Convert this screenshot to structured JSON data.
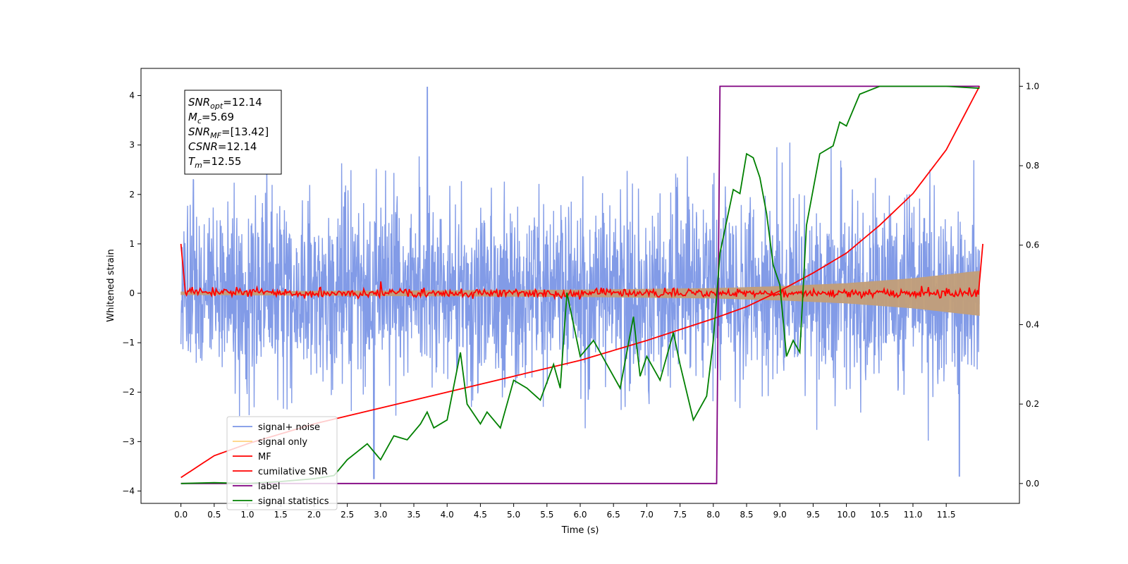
{
  "chart_data": {
    "type": "line",
    "xlabel": "Time (s)",
    "ylabel": "Whitened strain",
    "xlim": [
      -0.6,
      12.6
    ],
    "ylim_left": [
      -4.25,
      4.55
    ],
    "ylim_right": [
      -0.05,
      1.045
    ],
    "x_ticks": [
      "0.0",
      "0.5",
      "1.0",
      "1.5",
      "2.0",
      "2.5",
      "3.0",
      "3.5",
      "4.0",
      "4.5",
      "5.0",
      "5.5",
      "6.0",
      "6.5",
      "7.0",
      "7.5",
      "8.0",
      "8.5",
      "9.0",
      "9.5",
      "10.0",
      "10.5",
      "11.0",
      "11.5"
    ],
    "y_ticks_left": [
      4,
      3,
      2,
      1,
      0,
      -1,
      -2,
      -3,
      -4
    ],
    "y_ticks_right": [
      "1.0",
      "0.8",
      "0.6",
      "0.4",
      "0.2",
      "0.0"
    ],
    "annotation_lines": [
      {
        "sym": "SNR",
        "sub": "opt",
        "value": "=12.14"
      },
      {
        "sym": "M",
        "sub": "c",
        "value": "=5.69"
      },
      {
        "sym": "SNR",
        "sub": "MF",
        "value": "=[13.42]"
      },
      {
        "sym": "CSNR",
        "sub": "",
        "value": "=12.14"
      },
      {
        "sym": "T",
        "sub": "m",
        "value": "=12.55"
      }
    ],
    "legend_position": "lower-left",
    "legend": [
      {
        "label": "signal+ noise",
        "color": "#7b96e6"
      },
      {
        "label": "signal only",
        "color": "#ffd27f"
      },
      {
        "label": "MF",
        "color": "#ff0000"
      },
      {
        "label": "cumilative SNR",
        "color": "#ff0000"
      },
      {
        "label": "label",
        "color": "#800080"
      },
      {
        "label": "signal statistics",
        "color": "#008000"
      }
    ],
    "series": [
      {
        "name": "signal+ noise",
        "axis": "left",
        "color": "#7b96e6",
        "style": "dense noise band, envelope approx ±2 to ±3, spikes to 4.17 and -3.75",
        "envelope_upper": {
          "x": [
            0,
            12
          ],
          "y": [
            2.2,
            2.2
          ]
        },
        "envelope_lower": {
          "x": [
            0,
            12
          ],
          "y": [
            -2.3,
            -2.3
          ]
        },
        "peaks": [
          {
            "x": 3.7,
            "y": 4.17
          },
          {
            "x": 2.9,
            "y": -3.75
          },
          {
            "x": 11.7,
            "y": -3.7
          }
        ]
      },
      {
        "name": "signal only",
        "axis": "left",
        "color": "#c29e78",
        "style": "chirp envelope growing with time",
        "x": [
          0,
          3,
          6,
          8,
          9,
          10,
          11,
          12
        ],
        "amplitude": [
          0.03,
          0.05,
          0.07,
          0.1,
          0.14,
          0.2,
          0.3,
          0.45
        ]
      },
      {
        "name": "MF",
        "axis": "left",
        "color": "#ff0000",
        "style": "noisy line around 0, endpoints at 1.0",
        "x": [
          0,
          0.05,
          12,
          12.05
        ],
        "y": [
          1.0,
          0.0,
          0.0,
          1.0
        ]
      },
      {
        "name": "cumilative SNR",
        "axis": "right",
        "color": "#ff0000",
        "x": [
          0,
          0.5,
          1,
          2,
          3,
          4,
          5,
          6,
          7,
          8,
          8.5,
          9,
          9.5,
          10,
          10.5,
          11,
          11.5,
          12
        ],
        "y": [
          0.015,
          0.07,
          0.1,
          0.15,
          0.19,
          0.23,
          0.27,
          0.31,
          0.36,
          0.415,
          0.445,
          0.485,
          0.53,
          0.58,
          0.65,
          0.73,
          0.84,
          1.0
        ]
      },
      {
        "name": "label",
        "axis": "right",
        "color": "#800080",
        "x": [
          0,
          8.05,
          8.1,
          12
        ],
        "y": [
          0.0,
          0.0,
          1.0,
          1.0
        ]
      },
      {
        "name": "signal statistics",
        "axis": "right",
        "color": "#008000",
        "x": [
          0,
          0.5,
          1,
          1.5,
          2,
          2.3,
          2.5,
          2.8,
          2.9,
          3.0,
          3.2,
          3.4,
          3.6,
          3.7,
          3.8,
          4.0,
          4.2,
          4.3,
          4.5,
          4.6,
          4.8,
          5.0,
          5.2,
          5.4,
          5.6,
          5.7,
          5.8,
          5.9,
          6.0,
          6.2,
          6.4,
          6.6,
          6.8,
          6.9,
          7.0,
          7.2,
          7.4,
          7.5,
          7.7,
          7.9,
          8.0,
          8.1,
          8.2,
          8.3,
          8.4,
          8.5,
          8.6,
          8.7,
          8.8,
          8.9,
          9.0,
          9.1,
          9.2,
          9.3,
          9.4,
          9.6,
          9.8,
          9.9,
          10.0,
          10.2,
          10.5,
          11.0,
          11.5,
          12.0
        ],
        "y": [
          0.0,
          0.002,
          0.0,
          0.005,
          0.012,
          0.02,
          0.06,
          0.1,
          0.08,
          0.06,
          0.12,
          0.11,
          0.15,
          0.18,
          0.14,
          0.16,
          0.33,
          0.2,
          0.15,
          0.18,
          0.14,
          0.26,
          0.24,
          0.21,
          0.3,
          0.24,
          0.48,
          0.4,
          0.32,
          0.36,
          0.3,
          0.24,
          0.42,
          0.27,
          0.32,
          0.26,
          0.38,
          0.3,
          0.16,
          0.22,
          0.36,
          0.58,
          0.66,
          0.74,
          0.73,
          0.83,
          0.82,
          0.77,
          0.68,
          0.55,
          0.5,
          0.32,
          0.36,
          0.33,
          0.65,
          0.83,
          0.85,
          0.91,
          0.9,
          0.98,
          1.0,
          1.0,
          1.0,
          0.995
        ]
      }
    ]
  }
}
